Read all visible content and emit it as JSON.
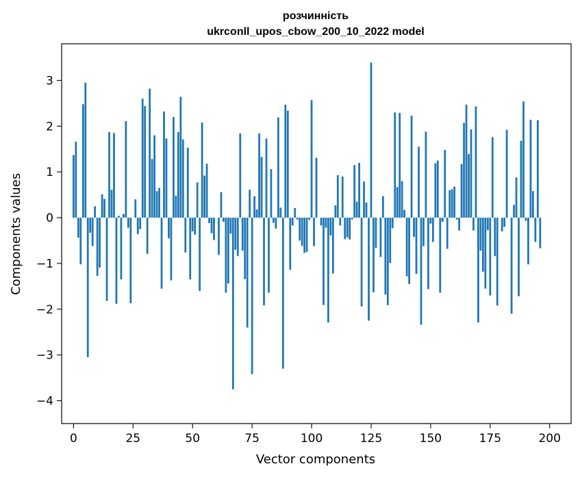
{
  "chart_data": {
    "type": "bar",
    "title_line1": "розчинність",
    "title_line2": "ukrconll_upos_cbow_200_10_2022 model",
    "xlabel": "Vector components",
    "ylabel": "Components values",
    "xlim": [
      -5,
      209
    ],
    "ylim": [
      -4.5,
      3.8
    ],
    "xticks": [
      0,
      25,
      50,
      75,
      100,
      125,
      150,
      175,
      200
    ],
    "yticks": [
      -4,
      -3,
      -2,
      -1,
      0,
      1,
      2,
      3
    ],
    "grid": false,
    "bar_color": "#1f77b4",
    "values": [
      1.37,
      1.66,
      -0.44,
      -1.02,
      2.48,
      2.95,
      -3.05,
      -0.33,
      -0.62,
      0.25,
      -1.27,
      -1.09,
      0.51,
      0.41,
      -1.82,
      1.87,
      0.61,
      1.85,
      -1.88,
      0.04,
      -1.35,
      0.08,
      2.11,
      -0.22,
      -1.87,
      0.0,
      0.4,
      -0.36,
      -0.25,
      2.6,
      2.44,
      -0.79,
      2.82,
      1.28,
      1.8,
      0.58,
      0.65,
      -1.55,
      2.32,
      1.73,
      -0.45,
      -1.37,
      2.2,
      0.48,
      1.87,
      2.64,
      1.71,
      -0.76,
      1.53,
      -1.35,
      -0.3,
      -0.37,
      0.77,
      -1.6,
      2.08,
      0.92,
      1.18,
      -0.12,
      -0.34,
      -0.49,
      0.0,
      -0.81,
      0.56,
      -0.09,
      -1.64,
      -1.44,
      -0.35,
      -3.75,
      -0.7,
      -0.84,
      1.84,
      -0.72,
      -1.34,
      -2.4,
      0.61,
      -3.42,
      0.47,
      0.18,
      1.84,
      1.33,
      -1.92,
      1.73,
      -1.64,
      1.06,
      -0.11,
      -0.24,
      2.19,
      0.22,
      -3.3,
      2.47,
      2.34,
      -1.14,
      -0.17,
      0.21,
      -0.04,
      -0.5,
      -0.62,
      -0.77,
      -0.75,
      -0.05,
      2.57,
      -0.62,
      1.31,
      0.0,
      -0.17,
      -1.91,
      -0.22,
      -2.29,
      -0.39,
      -1.22,
      0.27,
      0.93,
      -0.17,
      0.9,
      -0.47,
      -0.43,
      -0.48,
      -0.04,
      1.15,
      0.35,
      1.2,
      -1.94,
      0.79,
      0.33,
      -2.25,
      3.39,
      -1.63,
      -0.66,
      0.0,
      -0.86,
      0.47,
      -1.68,
      -1.91,
      -0.99,
      -0.23,
      2.3,
      0.67,
      2.29,
      0.8,
      0.17,
      -1.28,
      -1.45,
      2.23,
      -0.42,
      -1.23,
      1.55,
      -2.34,
      -0.62,
      1.88,
      -1.56,
      -0.13,
      -0.53,
      1.19,
      1.25,
      -1.64,
      -0.09,
      1.48,
      -0.68,
      0.6,
      0.62,
      0.68,
      -0.04,
      -0.28,
      1.17,
      2.07,
      2.47,
      1.39,
      1.93,
      -0.28,
      2.43,
      -2.29,
      -0.72,
      -1.18,
      -1.55,
      -0.27,
      -1.7,
      1.76,
      -0.84,
      -1.92,
      0.0,
      -0.3,
      -0.2,
      1.92,
      0.0,
      -2.1,
      0.28,
      0.88,
      -1.72,
      1.68,
      2.54,
      -0.07,
      -1.02,
      2.14,
      0.58,
      -0.53,
      2.13,
      -0.67
    ]
  }
}
